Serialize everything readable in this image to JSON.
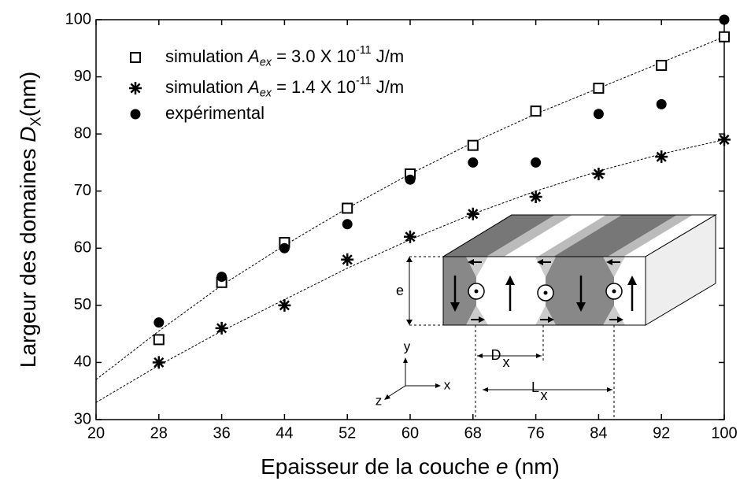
{
  "chart_data": {
    "type": "scatter",
    "x": [
      28,
      36,
      44,
      52,
      60,
      68,
      76,
      84,
      92,
      100
    ],
    "series": [
      {
        "name": [
          {
            "text": "simulation ",
            "style": "n"
          },
          {
            "text": "A",
            "style": "i"
          },
          {
            "text": "ex",
            "style": "isub"
          },
          {
            "text": " = 3.0 X 10",
            "style": "n"
          },
          {
            "text": "-11",
            "style": "sup"
          },
          {
            "text": " J/m",
            "style": "n"
          }
        ],
        "marker": "square",
        "color": "#000000",
        "values": [
          44,
          54,
          61,
          67,
          73,
          78,
          84,
          88,
          92,
          97
        ]
      },
      {
        "name": [
          {
            "text": "simulation ",
            "style": "n"
          },
          {
            "text": "A",
            "style": "i"
          },
          {
            "text": "ex",
            "style": "isub"
          },
          {
            "text": " = 1.4 X 10",
            "style": "n"
          },
          {
            "text": "-11",
            "style": "sup"
          },
          {
            "text": " J/m",
            "style": "n"
          }
        ],
        "marker": "star",
        "color": "#000000",
        "values": [
          40,
          46,
          50,
          58,
          62,
          66,
          69,
          73,
          76,
          79
        ]
      },
      {
        "name": [
          {
            "text": "expérimental",
            "style": "n"
          }
        ],
        "marker": "circle",
        "color": "#000000",
        "values": [
          47,
          55,
          60,
          64.2,
          72,
          75,
          75,
          83.5,
          85.2,
          100
        ]
      }
    ],
    "fits": [
      {
        "x": [
          20,
          28,
          36,
          44,
          52,
          60,
          68,
          76,
          84,
          92,
          100
        ],
        "values": [
          37,
          45.5,
          53.5,
          60.5,
          67,
          73,
          78.5,
          83.5,
          88,
          92.5,
          97
        ]
      },
      {
        "x": [
          20,
          28,
          36,
          44,
          52,
          60,
          68,
          76,
          84,
          92,
          100
        ],
        "values": [
          33,
          39.5,
          45.5,
          51,
          56.5,
          61.5,
          66,
          70,
          73.5,
          76.5,
          79
        ]
      }
    ],
    "xlabel": [
      {
        "text": "Epaisseur de la couche ",
        "style": "n"
      },
      {
        "text": "e",
        "style": "i"
      },
      {
        "text": " (nm)",
        "style": "n"
      }
    ],
    "ylabel": [
      {
        "text": "Largeur des domaines ",
        "style": "n"
      },
      {
        "text": "D",
        "style": "i"
      },
      {
        "text": "X",
        "style": "sub"
      },
      {
        "text": "(nm)",
        "style": "n"
      }
    ],
    "xlim": [
      20,
      100
    ],
    "xticks": [
      20,
      28,
      36,
      44,
      52,
      60,
      68,
      76,
      84,
      92,
      100
    ],
    "ylim": [
      30,
      100
    ],
    "yticks": [
      30,
      40,
      50,
      60,
      70,
      80,
      90,
      100
    ],
    "legend": "upper left",
    "inset": {
      "e": "e",
      "D": "D",
      "Dsub": "x",
      "L": "L",
      "Lsub": "x",
      "axis_y": "y",
      "axis_x": "x",
      "axis_z": "z"
    }
  }
}
